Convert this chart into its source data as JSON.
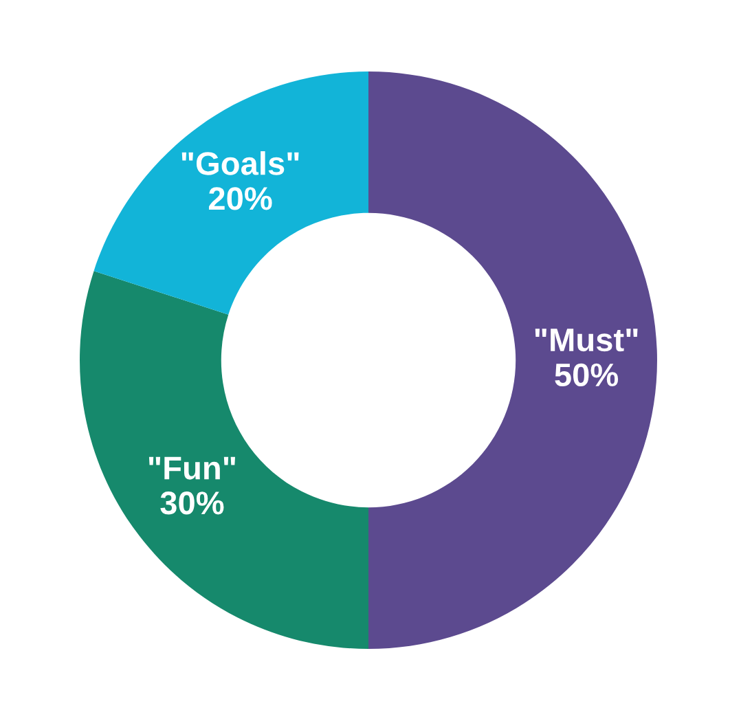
{
  "chart_data": {
    "type": "donut",
    "categories": [
      "\"Must\"",
      "\"Fun\"",
      "\"Goals\""
    ],
    "values": [
      50,
      30,
      20
    ],
    "colors": [
      "#5c4a8f",
      "#16896c",
      "#12b4d8"
    ],
    "value_labels": [
      "50%",
      "30%",
      "20%"
    ]
  }
}
